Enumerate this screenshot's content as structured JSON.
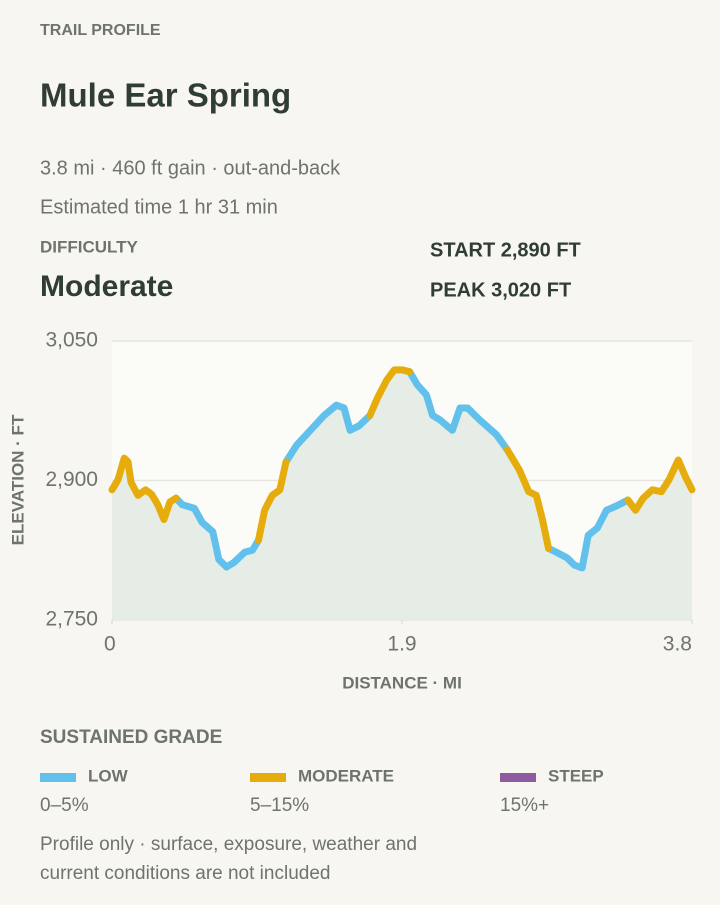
{
  "eyebrow": "TRAIL PROFILE",
  "title": "Mule Ear Spring",
  "stats": "3.8 mi · 460 ft gain · out-and-back",
  "estimate": "Estimated time 1 hr 31 min",
  "difficulty": {
    "label": "DIFFICULTY",
    "value": "Moderate"
  },
  "start": "START 2,890 FT",
  "peak": "PEAK 3,020 FT",
  "legend_title": "SUSTAINED GRADE",
  "legend_ranges": [
    "0–5%",
    "5–15%",
    "15%+"
  ],
  "footnote": [
    "Profile only · surface, exposure, weather and",
    "current conditions are not included"
  ],
  "chart_data": {
    "type": "line",
    "x_label": "DISTANCE · MI",
    "y_label": "ELEVATION · FT",
    "xlim": [
      0,
      3.8
    ],
    "ylim": [
      2750,
      3050
    ],
    "xticks": [
      0,
      1.9,
      3.8
    ],
    "yticks": [
      {
        "value": 2750,
        "label": "2,750"
      },
      {
        "value": 2900,
        "label": "2,900"
      },
      {
        "value": 3050,
        "label": "3,050"
      }
    ],
    "grid": true,
    "x": [
      0,
      0.04,
      0.08,
      0.105,
      0.125,
      0.17,
      0.22,
      0.26,
      0.3,
      0.34,
      0.38,
      0.42,
      0.46,
      0.54,
      0.59,
      0.66,
      0.7,
      0.75,
      0.8,
      0.87,
      0.92,
      0.96,
      1.0,
      1.05,
      1.1,
      1.14,
      1.21,
      1.3,
      1.39,
      1.47,
      1.52,
      1.56,
      1.62,
      1.69,
      1.74,
      1.8,
      1.85,
      1.9,
      1.95,
      2.0,
      2.06,
      2.1,
      2.15,
      2.23,
      2.28,
      2.33,
      2.41,
      2.52,
      2.59,
      2.67,
      2.73,
      2.78,
      2.82,
      2.86,
      2.91,
      2.98,
      3.03,
      3.08,
      3.12,
      3.18,
      3.24,
      3.31,
      3.38,
      3.43,
      3.48,
      3.54,
      3.6,
      3.65,
      3.71,
      3.76,
      3.8
    ],
    "series": [
      {
        "name": "LOW",
        "color": "#62c0ec",
        "values": [
          null,
          null,
          null,
          null,
          null,
          null,
          null,
          null,
          null,
          null,
          null,
          2881,
          2874,
          2870,
          2855,
          2845,
          2815,
          2807,
          2812,
          2823,
          2825,
          2836,
          null,
          null,
          null,
          2920,
          2938,
          2954,
          2970,
          2981,
          2978,
          2954,
          2959,
          2970,
          null,
          null,
          null,
          null,
          3017,
          3003,
          2992,
          2970,
          2965,
          2954,
          2978,
          2978,
          2965,
          2949,
          2933,
          null,
          null,
          null,
          null,
          2827,
          2823,
          2817,
          2809,
          2806,
          2841,
          2849,
          2868,
          2873,
          2879,
          null,
          null,
          null,
          null,
          null,
          null,
          null,
          null
        ]
      },
      {
        "name": "MODERATE",
        "color": "#e6ac0c",
        "values": [
          2890,
          2901,
          2924,
          2920,
          2898,
          2884,
          2890,
          2885,
          2874,
          2858,
          2877,
          2881,
          null,
          null,
          null,
          null,
          null,
          null,
          null,
          null,
          null,
          2836,
          2868,
          2884,
          2890,
          2920,
          null,
          null,
          null,
          null,
          null,
          null,
          null,
          2970,
          2989,
          3008,
          3019,
          3019,
          3017,
          null,
          null,
          null,
          null,
          null,
          null,
          null,
          null,
          null,
          2933,
          2911,
          2888,
          2884,
          2858,
          2827,
          null,
          null,
          null,
          null,
          null,
          null,
          null,
          null,
          2879,
          2868,
          2881,
          2890,
          2888,
          2901,
          2922,
          2903,
          2890
        ]
      },
      {
        "name": "STEEP",
        "color": "#8e5aa0",
        "values": [
          null,
          null,
          null,
          null,
          null,
          null,
          null,
          null,
          null,
          null,
          null,
          null,
          null,
          null,
          null,
          null,
          null,
          null,
          null,
          null,
          null,
          null,
          null,
          null,
          null,
          null,
          null,
          null,
          null,
          null,
          null,
          null,
          null,
          null,
          null,
          null,
          null,
          null,
          null,
          null,
          null,
          null,
          null,
          null,
          null,
          null,
          null,
          null,
          null,
          null,
          null,
          null,
          null,
          null,
          null,
          null,
          null,
          null,
          null,
          null,
          null,
          null,
          null,
          null,
          null,
          null,
          null,
          null,
          null,
          null,
          null
        ]
      }
    ]
  }
}
